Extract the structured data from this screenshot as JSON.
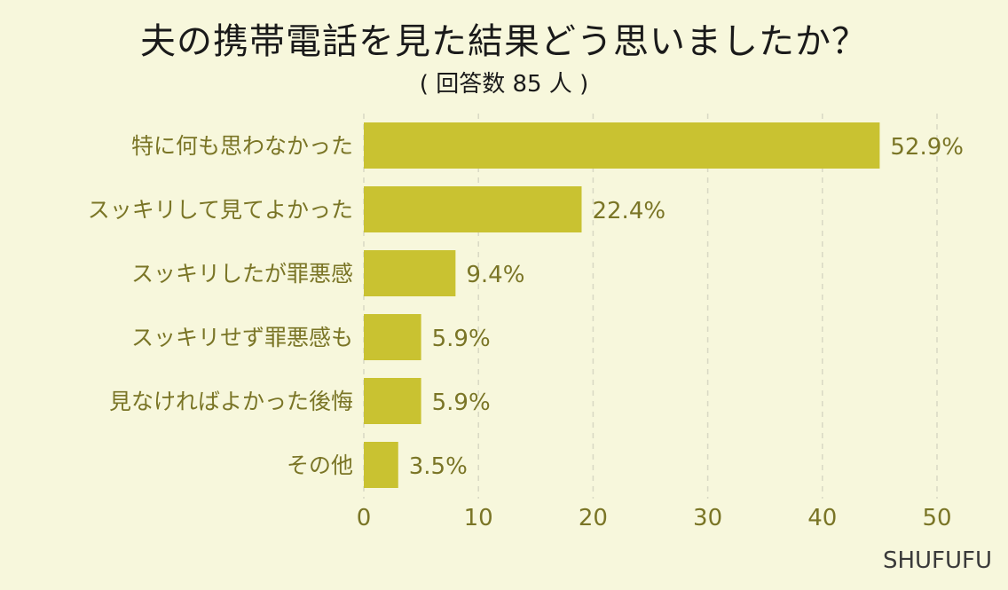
{
  "chart_data": {
    "type": "bar",
    "orientation": "horizontal",
    "title": "夫の携帯電話を見た結果どう思いましたか？",
    "subtitle": "( 回答数 85 人 )",
    "categories": [
      "特に何も思わなかった",
      "スッキリして見てよかった",
      "スッキリしたが罪悪感",
      "スッキリせず罪悪感も",
      "見なければよかった後悔",
      "その他"
    ],
    "values": [
      45,
      19,
      8,
      5,
      5,
      3
    ],
    "value_labels": [
      "52.9%",
      "22.4%",
      "9.4%",
      "5.9%",
      "5.9%",
      "3.5%"
    ],
    "xlim": [
      0,
      50
    ],
    "x_ticks": [
      "0",
      "10",
      "20",
      "30",
      "40",
      "50"
    ],
    "grid": "vertical dashed",
    "colors": {
      "bar": "#c9c231",
      "text": "#7a7526",
      "background": "#f7f7dc",
      "grid": "#d9d9c4"
    }
  },
  "footer": {
    "brand": "SHUFUFU"
  }
}
